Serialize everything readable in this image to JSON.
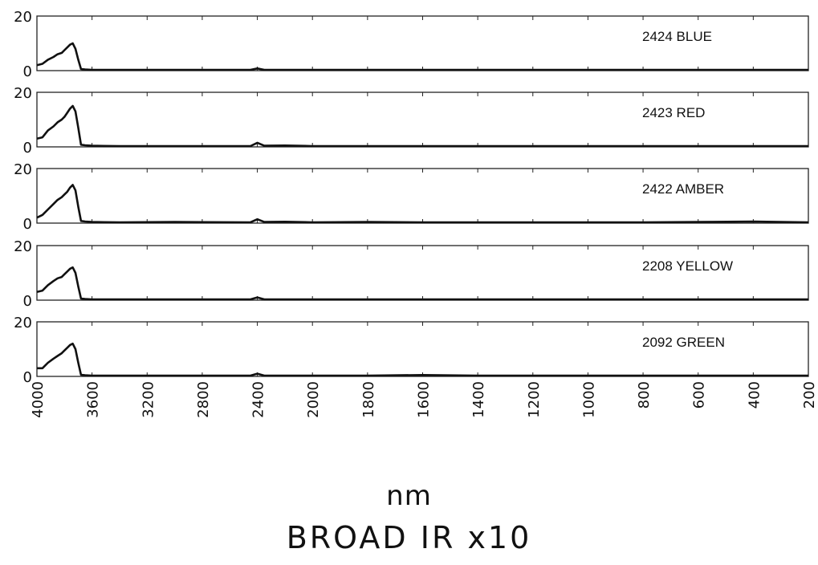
{
  "chart_data": {
    "type": "line",
    "xlabel": "nm",
    "caption": "BROAD IR x10",
    "x_ticks": [
      4000,
      3600,
      3200,
      2800,
      2400,
      2000,
      1800,
      1600,
      1400,
      1200,
      1000,
      800,
      600,
      400,
      200
    ],
    "ylim": [
      0,
      20
    ],
    "y_ticks": [
      0,
      20
    ],
    "grid": false,
    "panels": [
      {
        "label": "2424 BLUE",
        "series": {
          "x": [
            4000,
            3960,
            3920,
            3880,
            3850,
            3820,
            3800,
            3780,
            3760,
            3740,
            3720,
            3700,
            3680,
            3650,
            3600,
            3400,
            3000,
            2450,
            2400,
            2350,
            2200,
            2000,
            1800,
            1600,
            1400,
            1200,
            1000,
            800,
            600,
            400,
            200
          ],
          "y": [
            2,
            2.5,
            4,
            5,
            6,
            6.5,
            7.5,
            8.5,
            9.5,
            10,
            8,
            4,
            0.6,
            0.4,
            0.3,
            0.3,
            0.3,
            0.3,
            0.8,
            0.3,
            0.3,
            0.3,
            0.3,
            0.3,
            0.3,
            0.3,
            0.3,
            0.3,
            0.3,
            0.3,
            0.3
          ]
        }
      },
      {
        "label": "2423 RED",
        "series": {
          "x": [
            4000,
            3960,
            3920,
            3880,
            3850,
            3820,
            3800,
            3780,
            3760,
            3740,
            3720,
            3700,
            3680,
            3650,
            3600,
            3400,
            3000,
            2450,
            2400,
            2350,
            2200,
            2000,
            1800,
            1600,
            1400,
            1200,
            1000,
            800,
            600,
            400,
            200
          ],
          "y": [
            3,
            3.5,
            6,
            7.5,
            9,
            10,
            11,
            12.5,
            14,
            15,
            13,
            7,
            0.8,
            0.6,
            0.4,
            0.3,
            0.3,
            0.3,
            1.5,
            0.4,
            0.5,
            0.3,
            0.3,
            0.3,
            0.3,
            0.3,
            0.3,
            0.3,
            0.3,
            0.3,
            0.3
          ]
        }
      },
      {
        "label": "2422 AMBER",
        "series": {
          "x": [
            4000,
            3960,
            3920,
            3880,
            3850,
            3820,
            3800,
            3780,
            3760,
            3740,
            3720,
            3700,
            3680,
            3650,
            3600,
            3400,
            3000,
            2450,
            2400,
            2350,
            2200,
            2000,
            1800,
            1600,
            1400,
            1200,
            1000,
            800,
            600,
            400,
            200
          ],
          "y": [
            2,
            3,
            5,
            7,
            8.5,
            9.5,
            10.5,
            11.5,
            13,
            14,
            12,
            6,
            0.8,
            0.6,
            0.4,
            0.3,
            0.4,
            0.3,
            1.4,
            0.4,
            0.5,
            0.3,
            0.4,
            0.3,
            0.3,
            0.3,
            0.3,
            0.3,
            0.4,
            0.6,
            0.3
          ]
        }
      },
      {
        "label": "2208 YELLOW",
        "series": {
          "x": [
            4000,
            3960,
            3920,
            3880,
            3850,
            3820,
            3800,
            3780,
            3760,
            3740,
            3720,
            3700,
            3680,
            3650,
            3600,
            3400,
            3000,
            2450,
            2400,
            2350,
            2200,
            2000,
            1800,
            1600,
            1400,
            1200,
            1000,
            800,
            600,
            400,
            200
          ],
          "y": [
            3,
            3.5,
            5.5,
            7,
            8,
            8.5,
            9.5,
            10.5,
            11.5,
            12,
            10,
            5,
            0.6,
            0.4,
            0.3,
            0.3,
            0.3,
            0.3,
            1,
            0.3,
            0.3,
            0.3,
            0.3,
            0.3,
            0.3,
            0.3,
            0.3,
            0.3,
            0.3,
            0.3,
            0.3
          ]
        }
      },
      {
        "label": "2092 GREEN",
        "series": {
          "x": [
            4000,
            3960,
            3920,
            3880,
            3850,
            3820,
            3800,
            3780,
            3760,
            3740,
            3720,
            3700,
            3680,
            3650,
            3600,
            3400,
            3000,
            2450,
            2400,
            2350,
            2200,
            2000,
            1800,
            1600,
            1400,
            1200,
            1000,
            800,
            600,
            400,
            200
          ],
          "y": [
            3,
            3,
            5,
            6.5,
            7.5,
            8.5,
            9.5,
            10.5,
            11.5,
            12,
            10,
            5,
            0.6,
            0.4,
            0.3,
            0.3,
            0.3,
            0.3,
            1,
            0.3,
            0.3,
            0.3,
            0.3,
            0.5,
            0.3,
            0.3,
            0.3,
            0.3,
            0.3,
            0.3,
            0.3
          ]
        }
      }
    ]
  }
}
